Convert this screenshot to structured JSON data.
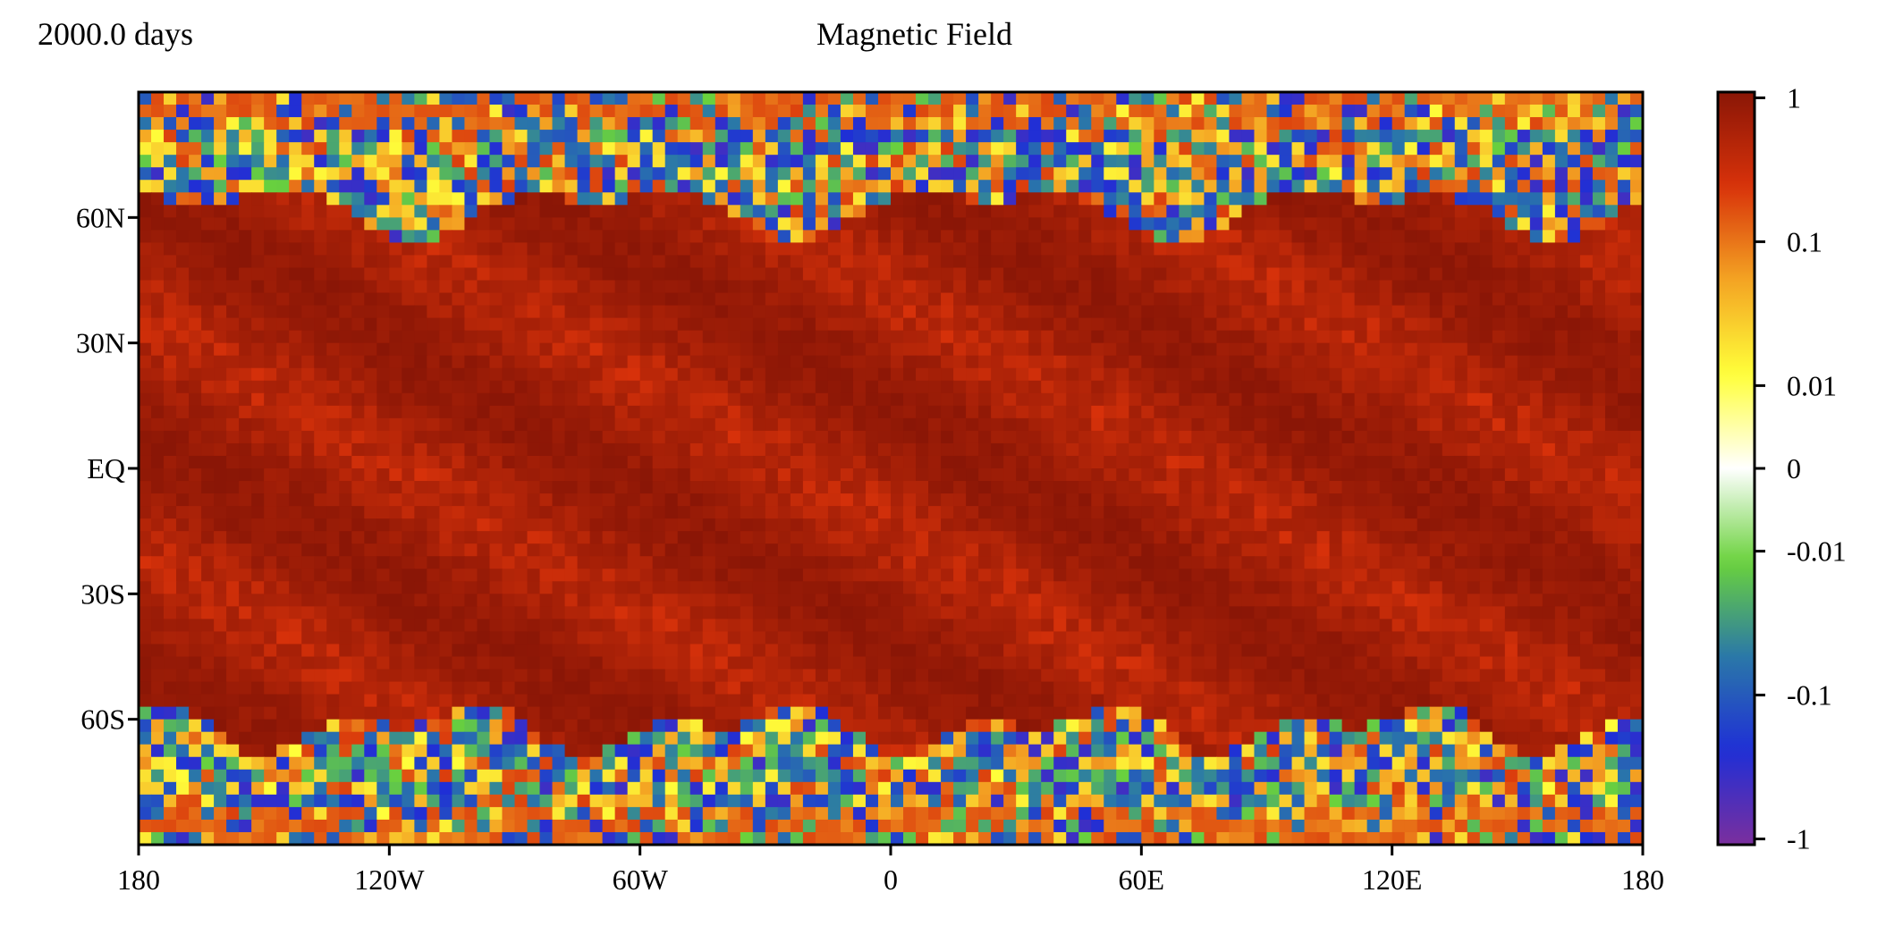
{
  "header": {
    "time_label": "2000.0 days",
    "title": "Magnetic Field"
  },
  "chart_data": {
    "type": "heatmap",
    "title": "Magnetic Field",
    "subtitle": "2000.0 days",
    "projection": "equirectangular longitude-latitude",
    "x_ticks": [
      "180",
      "120W",
      "60W",
      "0",
      "60E",
      "120E",
      "180"
    ],
    "x_tick_values": [
      -180,
      -120,
      -60,
      0,
      60,
      120,
      180
    ],
    "y_ticks": [
      "60N",
      "30N",
      "EQ",
      "30S",
      "60S"
    ],
    "y_tick_values": [
      60,
      30,
      0,
      -30,
      -60
    ],
    "xlim": [
      -180,
      180
    ],
    "ylim": [
      -90,
      90
    ],
    "colorbar": {
      "ticks": [
        "1",
        "0.1",
        "0.01",
        "0",
        "-0.01",
        "-0.1",
        "-1"
      ],
      "tick_values": [
        1,
        0.1,
        0.01,
        0,
        -0.01,
        -0.1,
        -1
      ],
      "scale": "symmetric-log",
      "range": [
        -1.1,
        1.1
      ],
      "colors": [
        "#7b2f9e",
        "#1f2fd6",
        "#2a78a8",
        "#6ad23c",
        "#ffffff",
        "#ffff3a",
        "#f4a423",
        "#d8320a",
        "#8a1606"
      ]
    },
    "field_summary": {
      "band_lat_range": [
        -62,
        62
      ],
      "band_value": 0.9,
      "polar_mix_values": [
        0.05,
        0.02,
        -0.02,
        -0.05,
        -0.12,
        -0.3,
        0.15
      ]
    }
  }
}
